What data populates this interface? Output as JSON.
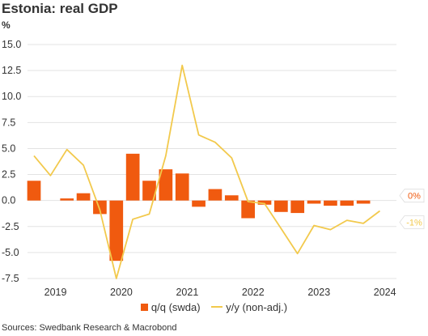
{
  "title": "Estonia: real GDP",
  "unit": "%",
  "source": "Sources: Swedbank Research & Macrobond",
  "colors": {
    "bar": "#f05a0f",
    "line": "#f2c94c",
    "grid": "#e3e3e3"
  },
  "chart_data": {
    "type": "bar",
    "title": "Estonia: real GDP",
    "ylabel": "%",
    "ylim": [
      -7.5,
      15
    ],
    "yticks": [
      "15.0",
      "12.5",
      "10.0",
      "7.5",
      "5.0",
      "2.5",
      "0.0",
      "-2.5",
      "-5.0",
      "-7.5"
    ],
    "ytick_values": [
      15,
      12.5,
      10,
      7.5,
      5,
      2.5,
      0,
      -2.5,
      -5,
      -7.5
    ],
    "year_ticks": [
      "2019",
      "2020",
      "2021",
      "2022",
      "2023",
      "2024"
    ],
    "quarters": [
      "2018Q4",
      "2019Q1",
      "2019Q2",
      "2019Q3",
      "2019Q4",
      "2020Q1",
      "2020Q2",
      "2020Q3",
      "2020Q4",
      "2021Q1",
      "2021Q2",
      "2021Q3",
      "2021Q4",
      "2022Q1",
      "2022Q2",
      "2022Q3",
      "2022Q4",
      "2023Q1",
      "2023Q2",
      "2023Q3",
      "2023Q4",
      "2024Q1",
      "2024Q2"
    ],
    "series": [
      {
        "name": "q/q (swda)",
        "kind": "bar",
        "values": [
          1.9,
          null,
          0.2,
          0.7,
          -1.3,
          -5.8,
          4.5,
          1.9,
          3.0,
          2.6,
          -0.6,
          1.1,
          0.5,
          -1.7,
          -0.4,
          -1.1,
          -1.2,
          -0.3,
          -0.5,
          -0.5,
          -0.3,
          null,
          null
        ]
      },
      {
        "name": "y/y (non-adj.)",
        "kind": "line",
        "values": [
          4.3,
          2.4,
          4.9,
          3.4,
          -0.9,
          -7.5,
          -1.8,
          -1.3,
          4.3,
          13.0,
          6.3,
          5.6,
          4.1,
          -0.1,
          -0.3,
          -2.7,
          -5.1,
          -2.4,
          -2.8,
          -1.9,
          -2.2,
          -1.0,
          null
        ]
      }
    ],
    "end_labels": [
      {
        "text": "0%",
        "series": "q/q (swda)",
        "value": 0
      },
      {
        "text": "-1%",
        "series": "y/y (non-adj.)",
        "value": -1
      }
    ],
    "grid": true,
    "legend": "bottom"
  }
}
